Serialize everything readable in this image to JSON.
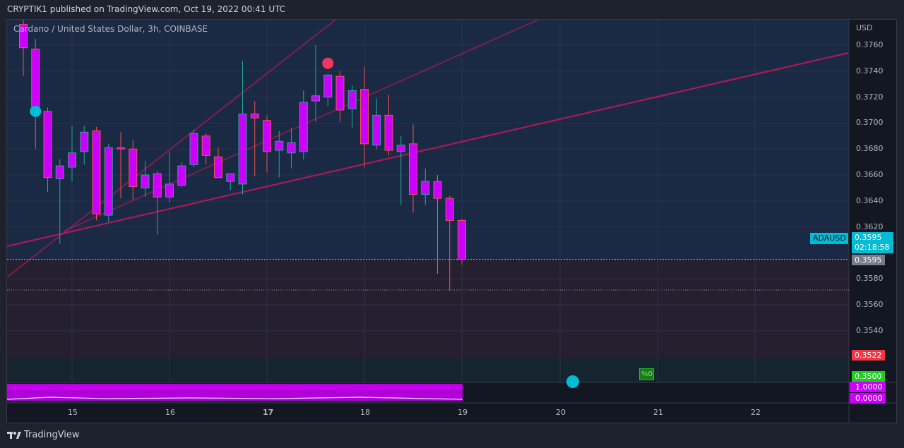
{
  "header": {
    "publish_text": "CRYPTIK1 published on TradingView.com, Oct 19, 2022 00:41 UTC"
  },
  "chart_data": {
    "type": "candlestick",
    "symbol": "ADAUSD",
    "legend": "Cardano / United States Dollar, 3h, COINBASE",
    "currency": "USD",
    "ylim": [
      0.35,
      0.3775
    ],
    "price_ticks": [
      "0.3760",
      "0.3740",
      "0.3720",
      "0.3700",
      "0.3680",
      "0.3660",
      "0.3640",
      "0.3620",
      "0.3580",
      "0.3560",
      "0.3540"
    ],
    "x_ticks": [
      "15",
      "16",
      "17",
      "18",
      "19",
      "20",
      "21",
      "22"
    ],
    "last_price": {
      "value": "0.3595",
      "countdown": "02:18:58",
      "symbol": "ADAUSD"
    },
    "price_badges": [
      {
        "label": "0.3595",
        "color": "#787b86"
      },
      {
        "label": "0.3522",
        "color": "#f23645"
      },
      {
        "label": "0.3500",
        "color": "#1fcc1f"
      }
    ],
    "indicator_pane": {
      "levels": [
        "1.0000",
        "0.0000"
      ],
      "color": "#cc00ff"
    },
    "percent_badge": "%0",
    "candles": [
      {
        "o": 0.3776,
        "h": 0.378,
        "l": 0.3736,
        "c": 0.3758
      },
      {
        "o": 0.3757,
        "h": 0.3765,
        "l": 0.368,
        "c": 0.3709
      },
      {
        "o": 0.3709,
        "h": 0.3712,
        "l": 0.3647,
        "c": 0.3658
      },
      {
        "o": 0.3657,
        "h": 0.3672,
        "l": 0.3607,
        "c": 0.3667
      },
      {
        "o": 0.3666,
        "h": 0.3698,
        "l": 0.3655,
        "c": 0.3677
      },
      {
        "o": 0.3678,
        "h": 0.3698,
        "l": 0.3668,
        "c": 0.3693
      },
      {
        "o": 0.3694,
        "h": 0.3697,
        "l": 0.3625,
        "c": 0.363
      },
      {
        "o": 0.3629,
        "h": 0.3684,
        "l": 0.3624,
        "c": 0.3681
      },
      {
        "o": 0.3681,
        "h": 0.3693,
        "l": 0.3642,
        "c": 0.368
      },
      {
        "o": 0.368,
        "h": 0.3687,
        "l": 0.3641,
        "c": 0.3651
      },
      {
        "o": 0.365,
        "h": 0.3671,
        "l": 0.3643,
        "c": 0.366
      },
      {
        "o": 0.3661,
        "h": 0.3663,
        "l": 0.3614,
        "c": 0.3643
      },
      {
        "o": 0.3643,
        "h": 0.3678,
        "l": 0.3639,
        "c": 0.3653
      },
      {
        "o": 0.3652,
        "h": 0.367,
        "l": 0.3651,
        "c": 0.3667
      },
      {
        "o": 0.3668,
        "h": 0.3695,
        "l": 0.3666,
        "c": 0.3692
      },
      {
        "o": 0.369,
        "h": 0.3692,
        "l": 0.3668,
        "c": 0.3675
      },
      {
        "o": 0.3674,
        "h": 0.3681,
        "l": 0.3659,
        "c": 0.3658
      },
      {
        "o": 0.3655,
        "h": 0.3659,
        "l": 0.3648,
        "c": 0.3661
      },
      {
        "o": 0.3653,
        "h": 0.3748,
        "l": 0.3645,
        "c": 0.3707
      },
      {
        "o": 0.3707,
        "h": 0.3717,
        "l": 0.3659,
        "c": 0.3704
      },
      {
        "o": 0.3702,
        "h": 0.3706,
        "l": 0.3662,
        "c": 0.3678
      },
      {
        "o": 0.3679,
        "h": 0.3694,
        "l": 0.3658,
        "c": 0.3686
      },
      {
        "o": 0.3677,
        "h": 0.3696,
        "l": 0.3665,
        "c": 0.3685
      },
      {
        "o": 0.3678,
        "h": 0.3725,
        "l": 0.3672,
        "c": 0.3716
      },
      {
        "o": 0.3717,
        "h": 0.376,
        "l": 0.3701,
        "c": 0.3721
      },
      {
        "o": 0.372,
        "h": 0.3738,
        "l": 0.3713,
        "c": 0.3737
      },
      {
        "o": 0.3736,
        "h": 0.374,
        "l": 0.3701,
        "c": 0.371
      },
      {
        "o": 0.3711,
        "h": 0.3729,
        "l": 0.3696,
        "c": 0.3725
      },
      {
        "o": 0.3726,
        "h": 0.3743,
        "l": 0.3666,
        "c": 0.3684
      },
      {
        "o": 0.3683,
        "h": 0.3719,
        "l": 0.368,
        "c": 0.3706
      },
      {
        "o": 0.3706,
        "h": 0.3722,
        "l": 0.3675,
        "c": 0.3679
      },
      {
        "o": 0.3678,
        "h": 0.369,
        "l": 0.3637,
        "c": 0.3683
      },
      {
        "o": 0.3684,
        "h": 0.3699,
        "l": 0.3631,
        "c": 0.3645
      },
      {
        "o": 0.3645,
        "h": 0.3665,
        "l": 0.3637,
        "c": 0.3655
      },
      {
        "o": 0.3655,
        "h": 0.366,
        "l": 0.3584,
        "c": 0.3642
      },
      {
        "o": 0.3642,
        "h": 0.3644,
        "l": 0.3571,
        "c": 0.3625
      },
      {
        "o": 0.3625,
        "h": 0.3626,
        "l": 0.3591,
        "c": 0.3595
      }
    ],
    "markers": [
      {
        "type": "circle",
        "candle": 1,
        "price": 0.3709,
        "color": "#00bcd4"
      },
      {
        "type": "circle",
        "candle": 25,
        "price": 0.3746,
        "color": "#f23662"
      }
    ]
  },
  "footer": {
    "brand": "TradingView"
  }
}
